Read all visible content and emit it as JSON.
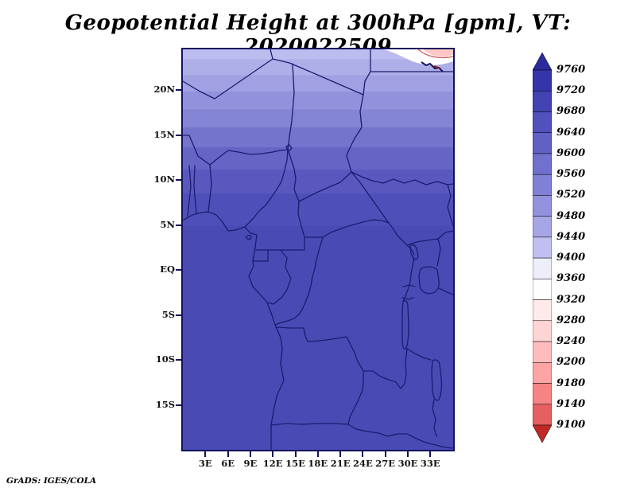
{
  "title": "Geopotential Height at 300hPa [gpm], VT: 2020022509",
  "footer": "GrADS: IGES/COLA",
  "axes": {
    "y_labels": [
      "20N",
      "15N",
      "10N",
      "5N",
      "EQ",
      "5S",
      "10S",
      "15S"
    ],
    "x_labels": [
      "3E",
      "6E",
      "9E",
      "12E",
      "15E",
      "18E",
      "21E",
      "24E",
      "27E",
      "30E",
      "33E"
    ]
  },
  "colorbar": {
    "labels": [
      "9760",
      "9720",
      "9680",
      "9640",
      "9600",
      "9560",
      "9520",
      "9480",
      "9440",
      "9400",
      "9360",
      "9320",
      "9280",
      "9240",
      "9200",
      "9180",
      "9140",
      "9100"
    ],
    "colors": [
      "#2B2B9E",
      "#3535AA",
      "#4343B4",
      "#5151BE",
      "#6060C6",
      "#7070CE",
      "#8080D6",
      "#9292DE",
      "#A6A6E7",
      "#C0C0F0",
      "#EEEEFB",
      "#FEFEFF",
      "#FFE9E9",
      "#FFD4D4",
      "#FFBCBC",
      "#FFA4A4",
      "#F68484",
      "#E66060",
      "#C02828"
    ]
  },
  "map": {
    "frame_color": "#12125e",
    "border_color": "#1c1c70",
    "bands": [
      {
        "color": "#BCBCEE",
        "until": 2.5
      },
      {
        "color": "#AEAEE8",
        "until": 6.5
      },
      {
        "color": "#A0A0E2",
        "until": 10.5
      },
      {
        "color": "#9292DC",
        "until": 15
      },
      {
        "color": "#8484D5",
        "until": 19.5
      },
      {
        "color": "#7474CD",
        "until": 24.5
      },
      {
        "color": "#6565C6",
        "until": 30
      },
      {
        "color": "#5858BF",
        "until": 36
      },
      {
        "color": "#4F4FB9",
        "until": 44
      },
      {
        "color": "#4A4AB5",
        "until": 100
      }
    ]
  },
  "chart_data": {
    "type": "heatmap",
    "title": "Geopotential Height at 300hPa [gpm], VT: 2020022509",
    "variable": "Geopotential Height",
    "level": "300hPa",
    "units": "gpm",
    "valid_time": "2020022509",
    "x_ticks": [
      "3E",
      "6E",
      "9E",
      "12E",
      "15E",
      "18E",
      "21E",
      "24E",
      "27E",
      "30E",
      "33E"
    ],
    "y_ticks": [
      "20N",
      "15N",
      "10N",
      "5N",
      "EQ",
      "5S",
      "10S",
      "15S"
    ],
    "legend_position": "right",
    "colorbar_levels": [
      9100,
      9140,
      9180,
      9200,
      9240,
      9280,
      9320,
      9360,
      9400,
      9440,
      9480,
      9520,
      9560,
      9600,
      9640,
      9680,
      9720,
      9760
    ],
    "colorbar_has_end_arrows": true,
    "field_gradient": [
      {
        "lat": "24N",
        "value": 9440
      },
      {
        "lat": "20N",
        "value": 9500
      },
      {
        "lat": "15N",
        "value": 9580
      },
      {
        "lat": "10N",
        "value": 9640
      },
      {
        "lat": "5N",
        "value": 9670
      },
      {
        "lat": "EQ to 20S",
        "value": 9700
      }
    ],
    "notes": "Blue filled contours over central Africa; heights increase southward from ~9440 gpm at the northern edge to ~9700 gpm south of 5N; small white/pink minimum below 9400 gpm at the map's top-right corner."
  }
}
